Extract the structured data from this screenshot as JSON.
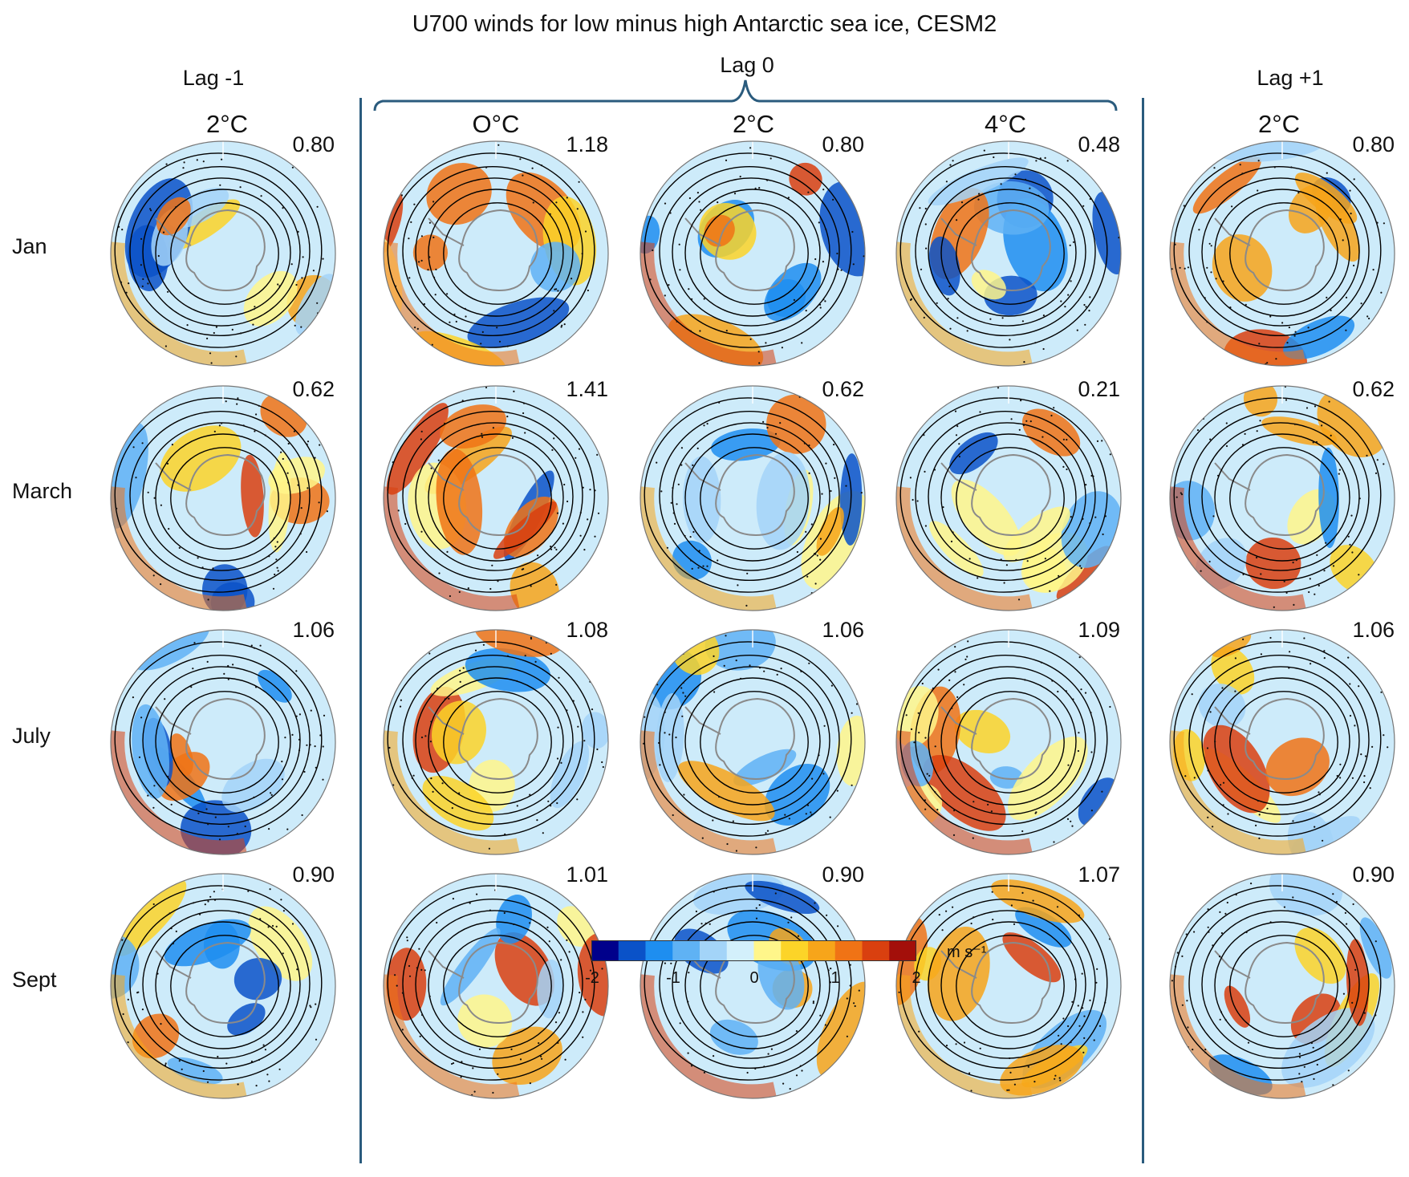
{
  "title": "U700 winds for low minus high Antarctic sea ice, CESM2",
  "groups": {
    "lag_minus1": "Lag -1",
    "lag0": "Lag 0",
    "lag_plus1": "Lag +1"
  },
  "columns": [
    {
      "group": "Lag -1",
      "temp": "2°C"
    },
    {
      "group": "Lag 0",
      "temp": "O°C"
    },
    {
      "group": "Lag 0",
      "temp": "2°C"
    },
    {
      "group": "Lag 0",
      "temp": "4°C"
    },
    {
      "group": "Lag +1",
      "temp": "2°C"
    }
  ],
  "rows": [
    "Jan",
    "March",
    "July",
    "Sept"
  ],
  "values": [
    [
      "0.80",
      "1.18",
      "0.80",
      "0.48",
      "0.80"
    ],
    [
      "0.62",
      "1.41",
      "0.62",
      "0.21",
      "0.62"
    ],
    [
      "1.06",
      "1.08",
      "1.06",
      "1.09",
      "1.06"
    ],
    [
      "0.90",
      "1.01",
      "0.90",
      "1.07",
      "0.90"
    ]
  ],
  "colorbar": {
    "unit": "m s⁻¹",
    "ticks": [
      "-2",
      "-1",
      "0",
      "1",
      "2"
    ],
    "range": [
      -2,
      2
    ],
    "colors": [
      "#00008b",
      "#0a52c8",
      "#1e8ef0",
      "#5fb2f4",
      "#a3d4f8",
      "#d3f0fb",
      "#fff68a",
      "#fcd428",
      "#f7a51a",
      "#f07315",
      "#d9400f",
      "#a30f0a"
    ]
  },
  "palette": {
    "divider": "#2a5b7d",
    "coast": "#8a8a8a",
    "contour": "#000000"
  }
}
